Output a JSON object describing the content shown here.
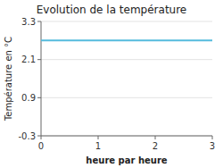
{
  "chart_data": {
    "type": "line",
    "title": "Evolution de la température",
    "xlabel": "heure par heure",
    "ylabel": "Température en °C",
    "x": [
      0,
      3
    ],
    "values": [
      2.7,
      2.7
    ],
    "color": "#55bbdd",
    "xlim": [
      0,
      3
    ],
    "ylim": [
      -0.3,
      3.3
    ],
    "xticks": [
      0,
      1,
      2,
      3
    ],
    "yticks": [
      -0.3,
      0.9,
      2.1,
      3.3
    ],
    "grid": true
  }
}
